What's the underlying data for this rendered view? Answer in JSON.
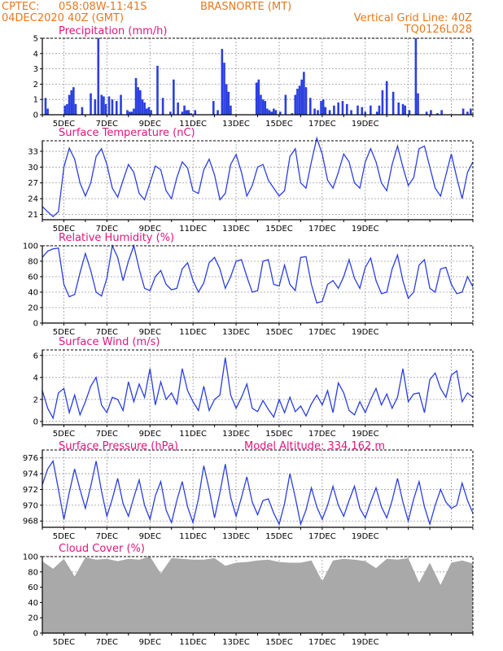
{
  "header": {
    "line1_left": "CPTEC:",
    "line1_coords": "058:08W-11:41S",
    "line1_station": "BRASNORTE (MT)",
    "line2_left": "04DEC2020 40Z (GMT)",
    "line2_right": "Vertical Grid Line: 40Z",
    "line3_right": "TQ0126L028"
  },
  "colors": {
    "header": "#e8781e",
    "panel_title": "#e0157d",
    "series": "#2b3fe0",
    "cloud": "#a9a9a9"
  },
  "date_labels": [
    "5DEC",
    "7DEC",
    "9DEC",
    "11DEC",
    "13DEC",
    "15DEC",
    "17DEC",
    "19DEC"
  ],
  "chart_data": [
    {
      "type": "bar",
      "title": "Precipitation (mm/h)",
      "ylim": [
        0,
        5
      ],
      "yticks": [
        0,
        1,
        2,
        3,
        4,
        5
      ],
      "grid": true,
      "x_days": [
        0.15,
        0.25,
        1.05,
        1.15,
        1.25,
        1.35,
        1.45,
        1.55,
        1.85,
        2.25,
        2.45,
        2.6,
        2.75,
        2.85,
        2.95,
        3.1,
        3.25,
        3.45,
        3.65,
        3.95,
        4.05,
        4.15,
        4.25,
        4.35,
        4.45,
        4.55,
        4.65,
        4.75,
        4.85,
        4.95,
        5.05,
        5.35,
        5.6,
        5.95,
        6.1,
        6.3,
        6.5,
        6.6,
        6.7,
        6.8,
        6.9,
        7.1,
        7.95,
        8.15,
        8.35,
        8.45,
        8.55,
        8.65,
        8.75,
        9.95,
        10.05,
        10.15,
        10.25,
        10.35,
        10.45,
        10.55,
        10.65,
        10.75,
        10.85,
        11.05,
        11.3,
        11.6,
        11.75,
        11.85,
        11.95,
        12.05,
        12.15,
        12.25,
        12.45,
        12.65,
        12.8,
        12.95,
        13.05,
        13.15,
        13.35,
        13.55,
        13.75,
        13.95,
        14.15,
        14.35,
        14.65,
        14.85,
        15.0,
        15.25,
        15.55,
        15.65,
        15.8,
        16.0,
        16.3,
        16.55,
        16.75,
        16.85,
        17.05,
        17.35,
        17.45,
        17.85,
        18.05,
        18.35,
        18.55,
        19.55,
        19.75,
        19.9
      ],
      "values": [
        1.1,
        0.4,
        0.6,
        0.7,
        1.3,
        1.6,
        1.8,
        0.7,
        0.5,
        1.4,
        1.0,
        5.0,
        1.3,
        1.2,
        0.7,
        1.2,
        1.0,
        0.9,
        1.3,
        0.3,
        0.2,
        0.2,
        0.4,
        2.4,
        1.8,
        1.6,
        1.0,
        0.8,
        0.4,
        0.5,
        0.3,
        3.2,
        1.1,
        0.2,
        2.3,
        0.8,
        0.2,
        0.6,
        0.3,
        0.3,
        0.1,
        0.3,
        0.9,
        0.3,
        4.3,
        3.4,
        2.0,
        1.5,
        0.6,
        2.1,
        2.3,
        1.3,
        1.0,
        0.9,
        0.4,
        0.3,
        0.2,
        0.4,
        0.3,
        0.2,
        1.3,
        0.1,
        1.3,
        1.7,
        1.9,
        2.3,
        2.8,
        1.8,
        1.1,
        0.4,
        0.3,
        0.9,
        1.0,
        0.5,
        0.3,
        0.6,
        0.8,
        0.9,
        0.7,
        0.3,
        0.6,
        0.5,
        0.2,
        0.6,
        0.2,
        0.6,
        1.6,
        2.2,
        1.5,
        0.8,
        0.7,
        0.6,
        0.3,
        5.0,
        1.4,
        0.2,
        0.3,
        0.1,
        0.3,
        0.4,
        0.2,
        0.4
      ]
    },
    {
      "type": "line",
      "title": "Surface Temperature (nC)",
      "ylim": [
        20,
        35
      ],
      "yticks": [
        21,
        24,
        27,
        30,
        33
      ],
      "grid": true,
      "x_days": [
        0,
        0.25,
        0.5,
        0.75,
        1.0,
        1.25,
        1.5,
        1.75,
        2.0,
        2.25,
        2.5,
        2.75,
        3.0,
        3.25,
        3.5,
        3.75,
        4.0,
        4.25,
        4.5,
        4.75,
        5.0,
        5.25,
        5.5,
        5.75,
        6.0,
        6.25,
        6.5,
        6.75,
        7.0,
        7.25,
        7.5,
        7.75,
        8.0,
        8.25,
        8.5,
        8.75,
        9.0,
        9.25,
        9.5,
        9.75,
        10.0,
        10.25,
        10.5,
        10.75,
        11.0,
        11.25,
        11.5,
        11.75,
        12.0,
        12.25,
        12.5,
        12.75,
        13.0,
        13.25,
        13.5,
        13.75,
        14.0,
        14.25,
        14.5,
        14.75,
        15.0,
        15.25,
        15.5,
        15.75,
        16.0,
        16.25,
        16.5,
        16.75,
        17.0,
        17.25,
        17.5,
        17.75,
        18.0,
        18.25,
        18.5,
        18.75,
        19.0,
        19.25,
        19.5,
        19.75,
        20.0
      ],
      "values": [
        22.5,
        21.5,
        20.6,
        21.5,
        30.0,
        33.6,
        31.5,
        27.0,
        24.5,
        27.0,
        32.0,
        33.5,
        30.5,
        26.0,
        24.3,
        27.5,
        30.5,
        29.0,
        25.0,
        23.8,
        27.0,
        30.2,
        29.5,
        25.5,
        24.0,
        28.0,
        31.0,
        29.8,
        25.5,
        25.0,
        29.5,
        31.5,
        28.5,
        23.8,
        25.0,
        30.5,
        32.4,
        29.0,
        24.5,
        26.5,
        30.0,
        30.5,
        27.5,
        26.0,
        24.5,
        25.5,
        32.0,
        33.5,
        27.0,
        26.0,
        31.0,
        35.5,
        32.5,
        27.5,
        26.0,
        29.0,
        32.5,
        31.0,
        27.0,
        26.0,
        31.0,
        33.5,
        31.0,
        27.0,
        25.5,
        30.5,
        34.0,
        30.0,
        26.5,
        28.0,
        33.5,
        34.0,
        30.0,
        26.0,
        24.5,
        28.5,
        32.5,
        28.0,
        24.0,
        29.0,
        31.0
      ]
    },
    {
      "type": "line",
      "title": "Relative Humidity (%)",
      "ylim": [
        0,
        100
      ],
      "yticks": [
        0,
        20,
        40,
        60,
        80,
        100
      ],
      "grid": true,
      "x_days": [
        0,
        0.25,
        0.5,
        0.75,
        1.0,
        1.25,
        1.5,
        1.75,
        2.0,
        2.25,
        2.5,
        2.75,
        3.0,
        3.25,
        3.5,
        3.75,
        4.0,
        4.25,
        4.5,
        4.75,
        5.0,
        5.25,
        5.5,
        5.75,
        6.0,
        6.25,
        6.5,
        6.75,
        7.0,
        7.25,
        7.5,
        7.75,
        8.0,
        8.25,
        8.5,
        8.75,
        9.0,
        9.25,
        9.5,
        9.75,
        10.0,
        10.25,
        10.5,
        10.75,
        11.0,
        11.25,
        11.5,
        11.75,
        12.0,
        12.25,
        12.5,
        12.75,
        13.0,
        13.25,
        13.5,
        13.75,
        14.0,
        14.25,
        14.5,
        14.75,
        15.0,
        15.25,
        15.5,
        15.75,
        16.0,
        16.25,
        16.5,
        16.75,
        17.0,
        17.25,
        17.5,
        17.75,
        18.0,
        18.25,
        18.5,
        18.75,
        19.0,
        19.25,
        19.5,
        19.75,
        20.0
      ],
      "values": [
        85,
        93,
        96,
        97,
        50,
        34,
        37,
        65,
        90,
        68,
        40,
        35,
        58,
        100,
        85,
        55,
        80,
        100,
        70,
        45,
        42,
        60,
        68,
        50,
        43,
        45,
        70,
        78,
        55,
        40,
        52,
        78,
        85,
        70,
        45,
        60,
        80,
        82,
        60,
        40,
        42,
        80,
        82,
        50,
        48,
        75,
        50,
        42,
        85,
        86,
        50,
        26,
        28,
        50,
        55,
        45,
        60,
        82,
        58,
        45,
        72,
        84,
        55,
        38,
        40,
        70,
        88,
        55,
        32,
        40,
        75,
        82,
        45,
        40,
        70,
        72,
        50,
        38,
        40,
        60,
        47
      ]
    },
    {
      "type": "line",
      "title": "Surface Wind (m/s)",
      "ylim": [
        -0.3,
        6.5
      ],
      "yticks": [
        0,
        2,
        4,
        6
      ],
      "grid": true,
      "x_days": [
        0,
        0.25,
        0.5,
        0.75,
        1.0,
        1.25,
        1.5,
        1.75,
        2.0,
        2.25,
        2.5,
        2.75,
        3.0,
        3.25,
        3.5,
        3.75,
        4.0,
        4.25,
        4.5,
        4.75,
        5.0,
        5.25,
        5.5,
        5.75,
        6.0,
        6.25,
        6.5,
        6.75,
        7.0,
        7.25,
        7.5,
        7.75,
        8.0,
        8.25,
        8.5,
        8.75,
        9.0,
        9.25,
        9.5,
        9.75,
        10.0,
        10.25,
        10.5,
        10.75,
        11.0,
        11.25,
        11.5,
        11.75,
        12.0,
        12.25,
        12.5,
        12.75,
        13.0,
        13.25,
        13.5,
        13.75,
        14.0,
        14.25,
        14.5,
        14.75,
        15.0,
        15.25,
        15.5,
        15.75,
        16.0,
        16.25,
        16.5,
        16.75,
        17.0,
        17.25,
        17.5,
        17.75,
        18.0,
        18.25,
        18.5,
        18.75,
        19.0,
        19.25,
        19.5,
        19.75,
        20.0
      ],
      "values": [
        2.8,
        1.2,
        0.3,
        2.6,
        3.0,
        0.8,
        2.4,
        0.6,
        1.8,
        3.2,
        4.0,
        1.5,
        0.8,
        2.2,
        2.0,
        1.0,
        3.6,
        1.8,
        3.4,
        2.2,
        4.8,
        1.5,
        3.6,
        2.0,
        2.6,
        1.6,
        4.8,
        2.8,
        1.8,
        1.0,
        3.2,
        1.0,
        2.0,
        2.4,
        5.8,
        2.4,
        1.2,
        2.2,
        3.4,
        1.2,
        0.9,
        1.9,
        1.1,
        0.4,
        2.0,
        0.8,
        2.2,
        0.9,
        1.4,
        0.5,
        1.6,
        2.4,
        1.5,
        2.8,
        0.8,
        3.5,
        2.6,
        1.0,
        0.6,
        1.8,
        0.8,
        2.0,
        3.0,
        1.5,
        2.5,
        1.2,
        2.2,
        4.8,
        1.8,
        2.5,
        2.6,
        0.8,
        3.8,
        4.4,
        3.0,
        2.2,
        4.2,
        4.6,
        1.8,
        2.6,
        2.2
      ]
    },
    {
      "type": "line",
      "title": "Surface Pressure (hPa)",
      "annotation": "Model Altitude: 334.162 m",
      "ylim": [
        967.2,
        977
      ],
      "yticks": [
        968,
        970,
        972,
        974,
        976
      ],
      "grid": true,
      "x_days": [
        0,
        0.25,
        0.5,
        0.75,
        1.0,
        1.25,
        1.5,
        1.75,
        2.0,
        2.25,
        2.5,
        2.75,
        3.0,
        3.25,
        3.5,
        3.75,
        4.0,
        4.25,
        4.5,
        4.75,
        5.0,
        5.25,
        5.5,
        5.75,
        6.0,
        6.25,
        6.5,
        6.75,
        7.0,
        7.25,
        7.5,
        7.75,
        8.0,
        8.25,
        8.5,
        8.75,
        9.0,
        9.25,
        9.5,
        9.75,
        10.0,
        10.25,
        10.5,
        10.75,
        11.0,
        11.25,
        11.5,
        11.75,
        12.0,
        12.25,
        12.5,
        12.75,
        13.0,
        13.25,
        13.5,
        13.75,
        14.0,
        14.25,
        14.5,
        14.75,
        15.0,
        15.25,
        15.5,
        15.75,
        16.0,
        16.25,
        16.5,
        16.75,
        17.0,
        17.25,
        17.5,
        17.75,
        18.0,
        18.25,
        18.5,
        18.75,
        19.0,
        19.25,
        19.5,
        19.75,
        20.0
      ],
      "values": [
        972.6,
        974.6,
        975.6,
        972.0,
        968.2,
        971.6,
        974.6,
        972.0,
        969.6,
        972.4,
        975.6,
        971.8,
        968.6,
        970.8,
        973.4,
        970.2,
        968.6,
        971.0,
        973.2,
        970.0,
        968.2,
        971.2,
        973.0,
        969.4,
        967.8,
        970.6,
        973.0,
        969.8,
        967.8,
        970.8,
        975.0,
        972.0,
        968.4,
        971.6,
        975.2,
        971.0,
        968.6,
        971.0,
        973.6,
        970.4,
        968.8,
        970.6,
        970.8,
        969.0,
        967.6,
        970.2,
        974.0,
        971.0,
        967.6,
        969.4,
        972.2,
        969.8,
        968.2,
        970.0,
        972.4,
        970.0,
        968.6,
        970.6,
        972.4,
        969.6,
        968.4,
        970.4,
        972.2,
        969.8,
        968.4,
        970.6,
        973.4,
        970.4,
        968.0,
        970.8,
        973.0,
        969.8,
        967.6,
        970.0,
        972.0,
        970.4,
        969.6,
        970.0,
        972.8,
        970.6,
        969.0
      ]
    },
    {
      "type": "area",
      "title": "Cloud Cover (%)",
      "ylim": [
        0,
        100
      ],
      "yticks": [
        0,
        20,
        40,
        60,
        80,
        100
      ],
      "grid": true,
      "x_days": [
        0,
        0.5,
        1.0,
        1.5,
        2.0,
        2.5,
        3.0,
        3.5,
        4.0,
        4.5,
        5.0,
        5.5,
        6.0,
        6.5,
        7.0,
        7.5,
        8.0,
        8.5,
        9.0,
        9.5,
        10.0,
        10.5,
        11.0,
        11.5,
        12.0,
        12.5,
        13.0,
        13.5,
        14.0,
        14.5,
        15.0,
        15.5,
        16.0,
        16.5,
        17.0,
        17.5,
        18.0,
        18.5,
        19.0,
        19.5,
        20.0
      ],
      "values": [
        94,
        84,
        97,
        74,
        99,
        96,
        97,
        94,
        97,
        96,
        100,
        78,
        98,
        97,
        96,
        96,
        98,
        88,
        92,
        93,
        95,
        96,
        93,
        92,
        92,
        95,
        68,
        95,
        97,
        96,
        94,
        85,
        97,
        96,
        98,
        66,
        92,
        63,
        92,
        95,
        91
      ]
    }
  ]
}
